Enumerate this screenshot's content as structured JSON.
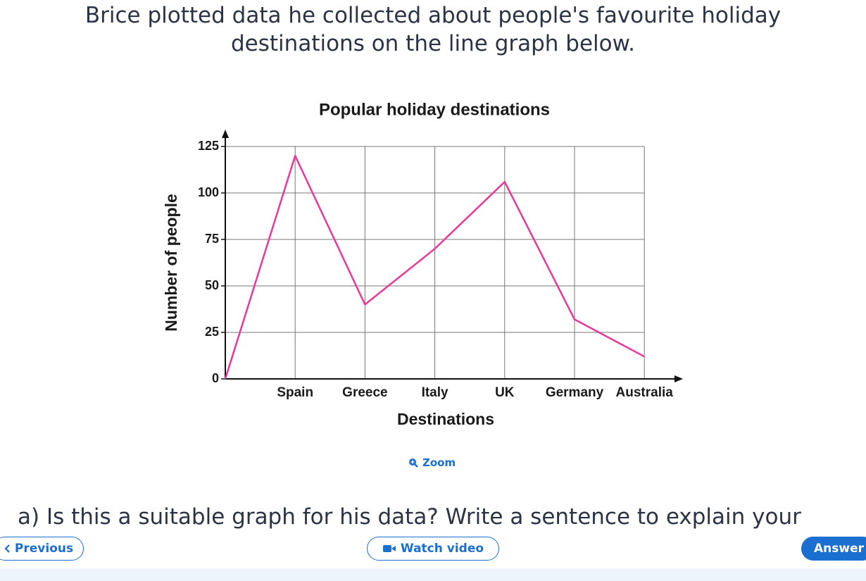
{
  "question": {
    "intro": "Brice plotted data he collected about people's favourite holiday destinations on the line graph below.",
    "prompt": "a) Is this a suitable graph for his data? Write a sentence to explain your"
  },
  "chart_data": {
    "type": "line",
    "title": "Popular holiday destinations",
    "xlabel": "Destinations",
    "ylabel": "Number of people",
    "categories": [
      null,
      "Spain",
      "Greece",
      "Italy",
      "UK",
      "Germany",
      "Australia"
    ],
    "values": [
      0,
      120,
      40,
      70,
      106,
      32,
      12
    ],
    "color": "#e8389a",
    "ylim": [
      0,
      125
    ],
    "yticks": [
      0,
      25,
      50,
      75,
      100,
      125
    ],
    "grid": true
  },
  "zoom": "Zoom",
  "nav": {
    "previous": "Previous",
    "watch": "Watch video",
    "answer": "Answer"
  }
}
